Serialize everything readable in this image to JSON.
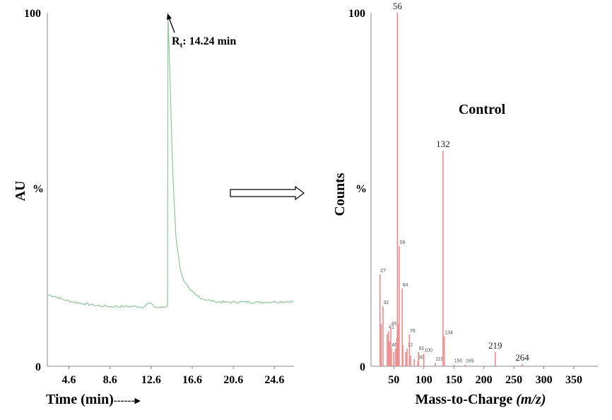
{
  "chart_data": [
    {
      "type": "line",
      "ylabel": "AU",
      "xlabel": "Time (min)",
      "xlabel_suffix": "------▸",
      "y_top_label": "100",
      "y_mid_label": "%",
      "y_bottom_label": "0",
      "xlim": [
        2.5,
        26.5
      ],
      "ylim": [
        0,
        100
      ],
      "xticks": [
        4.6,
        8.6,
        12.6,
        16.6,
        20.6,
        24.6
      ],
      "xtick_labels": [
        "4.6",
        "8.6",
        "12.6",
        "16.6",
        "20.6",
        "24.6"
      ],
      "annotation": {
        "main": "R",
        "sub": "t",
        "rest": ": 14.24 min"
      },
      "line_color": "#8fc79a",
      "series": [
        {
          "x": [
            2.5,
            3.2,
            4.0,
            5.0,
            6.0,
            7.0,
            8.0,
            9.0,
            10.0,
            11.0,
            11.9,
            12.2,
            12.5,
            12.9,
            13.3,
            13.8,
            14.2,
            14.24,
            14.4,
            14.7,
            15.0,
            15.4,
            15.8,
            16.4,
            17.0,
            17.8,
            18.8,
            20.0,
            21.5,
            23.0,
            24.5,
            26.0,
            26.5
          ],
          "y": [
            20.3,
            19.8,
            18.9,
            18.2,
            17.7,
            17.3,
            17.0,
            16.9,
            16.9,
            16.9,
            16.8,
            17.6,
            17.9,
            16.8,
            16.6,
            16.7,
            17.0,
            100,
            85,
            55,
            37,
            28,
            24,
            21.5,
            20,
            18.9,
            18.3,
            18.1,
            18.2,
            18.1,
            18.2,
            18.3,
            18.4
          ]
        }
      ]
    },
    {
      "type": "bar",
      "title": "Control",
      "ylabel": "Counts",
      "xlabel": "Mass-to-Charge",
      "xlabel_italic": "(m/z)",
      "y_top_label": "100",
      "y_mid_label": "%",
      "y_bottom_label": "0",
      "xlim": [
        12,
        390
      ],
      "ylim": [
        0,
        100
      ],
      "xticks": [
        50,
        100,
        150,
        200,
        250,
        300,
        350
      ],
      "xtick_labels": [
        "50",
        "100",
        "150",
        "200",
        "250",
        "300",
        "350"
      ],
      "bar_color": "#f08a8a",
      "peaks": [
        {
          "x": 27,
          "y": 26,
          "label": "27"
        },
        {
          "x": 29,
          "y": 12
        },
        {
          "x": 32,
          "y": 17,
          "label": "32"
        },
        {
          "x": 39,
          "y": 9
        },
        {
          "x": 41,
          "y": 10,
          "label": "41"
        },
        {
          "x": 43,
          "y": 7
        },
        {
          "x": 45,
          "y": 11,
          "label": "45"
        },
        {
          "x": 46,
          "y": 5,
          "label": "46"
        },
        {
          "x": 50,
          "y": 4
        },
        {
          "x": 53,
          "y": 5
        },
        {
          "x": 55,
          "y": 8
        },
        {
          "x": 56,
          "y": 100,
          "label": "56"
        },
        {
          "x": 57,
          "y": 12
        },
        {
          "x": 59,
          "y": 34,
          "label": "59"
        },
        {
          "x": 64,
          "y": 22,
          "label": "64"
        },
        {
          "x": 65,
          "y": 6
        },
        {
          "x": 70,
          "y": 4
        },
        {
          "x": 72,
          "y": 5,
          "label": "72"
        },
        {
          "x": 76,
          "y": 9,
          "label": "76"
        },
        {
          "x": 78,
          "y": 3
        },
        {
          "x": 84,
          "y": 2
        },
        {
          "x": 90,
          "y": 1.5,
          "label": "90"
        },
        {
          "x": 91,
          "y": 4,
          "label": "91"
        },
        {
          "x": 100,
          "y": 3.5,
          "label": "100"
        },
        {
          "x": 119,
          "y": 1,
          "label": "119"
        },
        {
          "x": 132,
          "y": 61,
          "label": "132"
        },
        {
          "x": 134,
          "y": 8.5,
          "label": "134"
        },
        {
          "x": 150,
          "y": 0.5,
          "label": "150"
        },
        {
          "x": 169,
          "y": 0.5,
          "label": "169"
        },
        {
          "x": 219,
          "y": 4,
          "label": "219"
        },
        {
          "x": 264,
          "y": 0.6,
          "label": "264"
        }
      ]
    }
  ]
}
